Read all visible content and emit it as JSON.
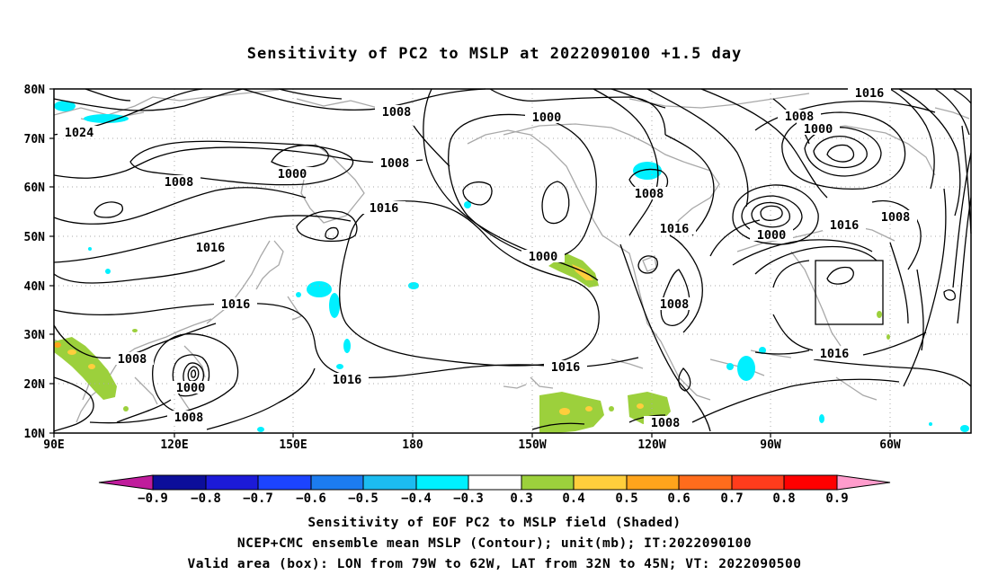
{
  "title": "Sensitivity of PC2 to MSLP at 2022090100 +1.5 day",
  "lat_labels": [
    "80N",
    "70N",
    "60N",
    "50N",
    "40N",
    "30N",
    "20N",
    "10N"
  ],
  "lon_labels": [
    "90E",
    "120E",
    "150E",
    "180",
    "150W",
    "120W",
    "90W",
    "60W"
  ],
  "contour_labels": [
    {
      "text": "1024",
      "id": "c1024"
    },
    {
      "text": "1008",
      "id": "c1008a"
    },
    {
      "text": "1000",
      "id": "c1000a"
    },
    {
      "text": "1008",
      "id": "c1008b"
    },
    {
      "text": "1016",
      "id": "c1016a"
    },
    {
      "text": "1016",
      "id": "c1016b"
    },
    {
      "text": "1016",
      "id": "c1016c"
    },
    {
      "text": "1008",
      "id": "c1008c"
    },
    {
      "text": "1000",
      "id": "c1000b"
    },
    {
      "text": "1008",
      "id": "c1008d"
    },
    {
      "text": "1016",
      "id": "c1016d"
    },
    {
      "text": "1016",
      "id": "c1016e"
    },
    {
      "text": "1000",
      "id": "c1000c"
    },
    {
      "text": "1008",
      "id": "c1008e"
    },
    {
      "text": "1016",
      "id": "c1016f"
    },
    {
      "text": "1008",
      "id": "c1008f"
    },
    {
      "text": "1000",
      "id": "c1000d"
    },
    {
      "text": "1008",
      "id": "c1008g"
    },
    {
      "text": "1000",
      "id": "c1000e"
    },
    {
      "text": "1016",
      "id": "c1016g"
    },
    {
      "text": "1008",
      "id": "c1008h"
    },
    {
      "text": "1016",
      "id": "c1016h"
    },
    {
      "text": "1016",
      "id": "c1016i"
    },
    {
      "text": "1008",
      "id": "c1008i"
    },
    {
      "text": "1000",
      "id": "c1000f"
    },
    {
      "text": "1008",
      "id": "c1008j"
    }
  ],
  "colorbar": {
    "labels": [
      "−0.9",
      "−0.8",
      "−0.7",
      "−0.6",
      "−0.5",
      "−0.4",
      "−0.3",
      "0.3",
      "0.4",
      "0.5",
      "0.6",
      "0.7",
      "0.8",
      "0.9"
    ],
    "colors": [
      "#c01c9c",
      "#0c0e9a",
      "#1c1ad8",
      "#1c44ff",
      "#1c7cf0",
      "#1cbcf0",
      "#00f0ff",
      "#ffffff",
      "#9cd03c",
      "#ffce3c",
      "#ffa41c",
      "#ff6c1c",
      "#ff3c1c",
      "#ff0000",
      "#ff9ccc"
    ]
  },
  "captions": {
    "line1": "Sensitivity of EOF PC2 to MSLP field (Shaded)",
    "line2": "NCEP+CMC ensemble mean MSLP (Contour); unit(mb); IT:2022090100",
    "line3": "Valid area (box): LON from 79W to 62W, LAT from 32N to 45N; VT: 2022090500"
  }
}
